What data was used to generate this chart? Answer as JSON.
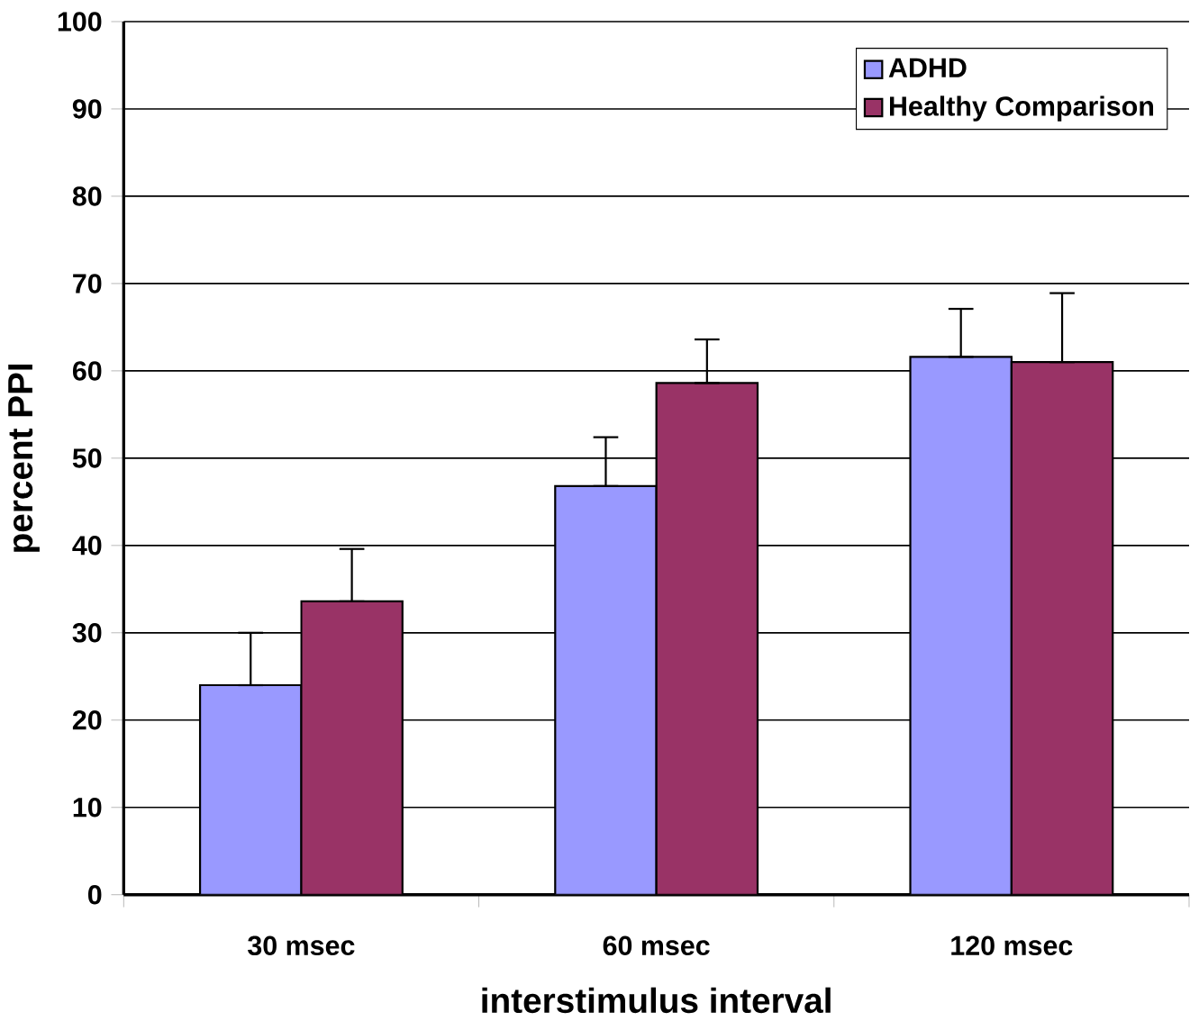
{
  "chart_data": {
    "type": "bar",
    "xlabel": "interstimulus interval",
    "ylabel": "percent PPI",
    "categories": [
      "30 msec",
      "60 msec",
      "120 msec"
    ],
    "series": [
      {
        "name": "ADHD",
        "color": "#9999ff",
        "values": [
          24.0,
          46.8,
          61.6
        ],
        "errors": [
          [
            24.0,
            30.0
          ],
          [
            46.8,
            52.4
          ],
          [
            61.6,
            67.1
          ]
        ]
      },
      {
        "name": "Healthy Comparison",
        "color": "#993366",
        "values": [
          33.6,
          58.6,
          61.0
        ],
        "errors": [
          [
            33.6,
            39.6
          ],
          [
            58.6,
            63.6
          ],
          [
            61.0,
            68.9
          ]
        ]
      }
    ],
    "ylim": [
      0,
      100
    ],
    "yticks": [
      0,
      10,
      20,
      30,
      40,
      50,
      60,
      70,
      80,
      90,
      100
    ],
    "grid": "y",
    "legend": "top right"
  }
}
